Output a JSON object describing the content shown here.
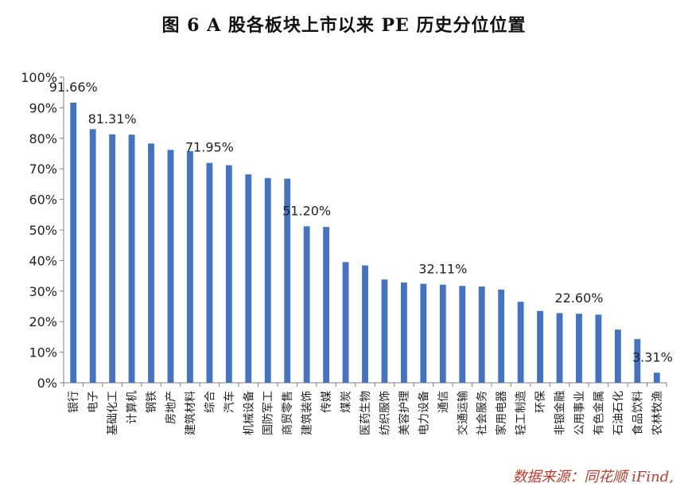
{
  "title": "图 6 A 股各板块上市以来 PE 历史分位位置",
  "source": "数据来源：同花顺 iFind,",
  "colors": {
    "bar": "#4472C4",
    "axis": "#7f7f7f",
    "source": "#c0392b"
  },
  "chart_data": {
    "type": "bar",
    "title": "图 6 A 股各板块上市以来 PE 历史分位位置",
    "xlabel": "",
    "ylabel": "",
    "ylim": [
      0,
      100
    ],
    "grid": false,
    "yticks": [
      0,
      10,
      20,
      30,
      40,
      50,
      60,
      70,
      80,
      90,
      100
    ],
    "yticklabels": [
      "0%",
      "10%",
      "20%",
      "30%",
      "40%",
      "50%",
      "60%",
      "70%",
      "80%",
      "90%",
      "100%"
    ],
    "categories": [
      "银行",
      "电子",
      "基础化工",
      "计算机",
      "钢铁",
      "房地产",
      "建筑材料",
      "综合",
      "汽车",
      "机械设备",
      "国防军工",
      "商贸零售",
      "建筑装饰",
      "传媒",
      "煤炭",
      "医药生物",
      "纺织服饰",
      "美容护理",
      "电力设备",
      "通信",
      "交通运输",
      "社会服务",
      "家用电器",
      "轻工制造",
      "环保",
      "非银金融",
      "公用事业",
      "有色金属",
      "石油石化",
      "食品饮料",
      "农林牧渔"
    ],
    "values": [
      91.66,
      83.0,
      81.31,
      81.2,
      78.3,
      76.2,
      75.8,
      71.95,
      71.2,
      68.2,
      67.0,
      66.8,
      51.2,
      51.0,
      39.5,
      38.4,
      33.8,
      32.8,
      32.4,
      32.11,
      31.7,
      31.5,
      30.5,
      26.5,
      23.5,
      22.8,
      22.6,
      22.3,
      17.4,
      14.3,
      3.31
    ],
    "data_labels": [
      {
        "index": 0,
        "text": "91.66%"
      },
      {
        "index": 2,
        "text": "81.31%"
      },
      {
        "index": 7,
        "text": "71.95%"
      },
      {
        "index": 12,
        "text": "51.20%"
      },
      {
        "index": 19,
        "text": "32.11%"
      },
      {
        "index": 26,
        "text": "22.60%"
      },
      {
        "index": 30,
        "text": "3.31%"
      }
    ]
  }
}
